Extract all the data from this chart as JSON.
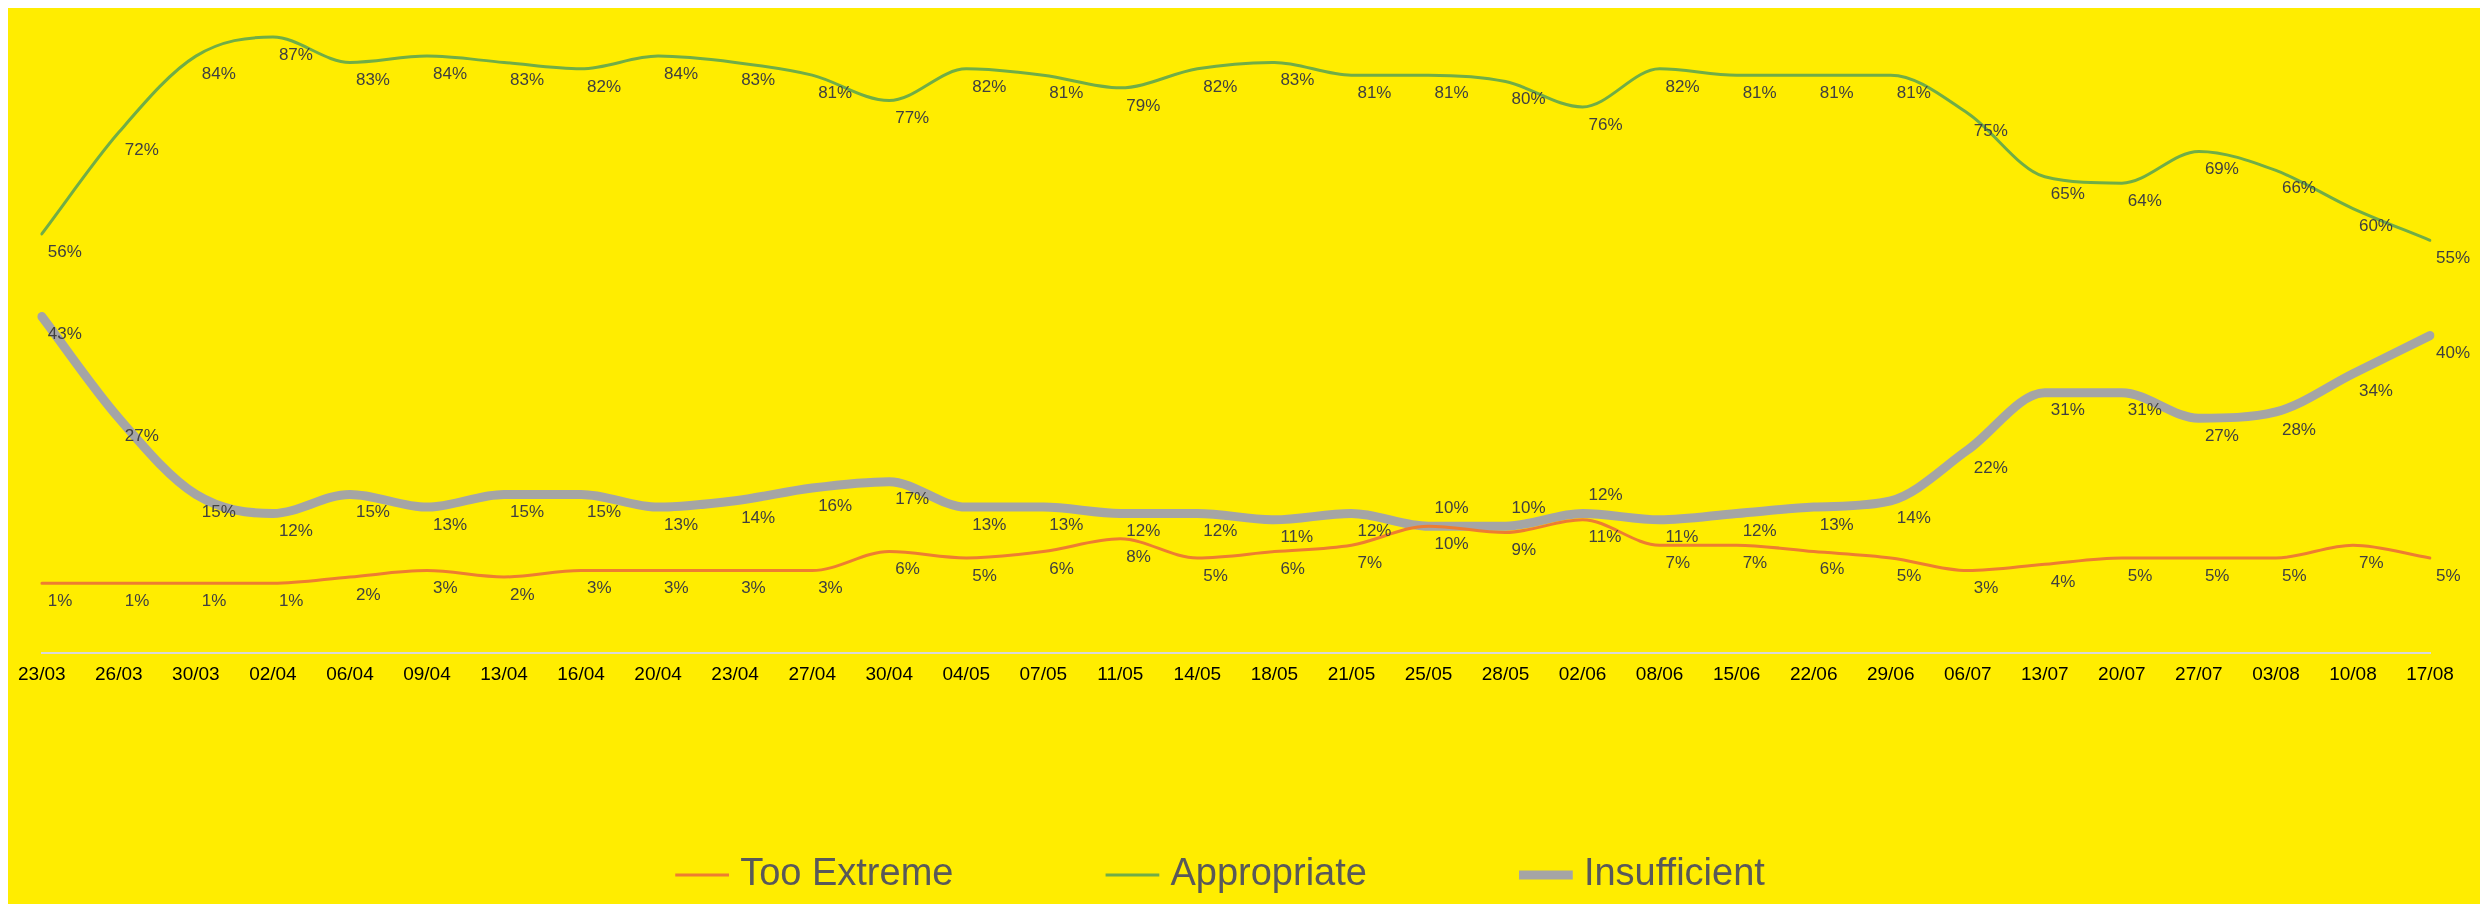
{
  "chart_data": {
    "type": "line",
    "categories": [
      "23/03",
      "26/03",
      "30/03",
      "02/04",
      "06/04",
      "09/04",
      "13/04",
      "16/04",
      "20/04",
      "23/04",
      "27/04",
      "30/04",
      "04/05",
      "07/05",
      "11/05",
      "14/05",
      "18/05",
      "21/05",
      "25/05",
      "28/05",
      "02/06",
      "08/06",
      "15/06",
      "22/06",
      "29/06",
      "06/07",
      "13/07",
      "20/07",
      "27/07",
      "03/08",
      "10/08",
      "17/08"
    ],
    "series": [
      {
        "name": "Too Extreme",
        "color": "#ed7d31",
        "values": [
          1,
          1,
          1,
          1,
          2,
          3,
          2,
          3,
          3,
          3,
          3,
          6,
          5,
          6,
          8,
          5,
          6,
          7,
          10,
          9,
          11,
          7,
          7,
          6,
          5,
          3,
          4,
          5,
          5,
          5,
          7,
          5
        ],
        "value_labels": [
          "1%",
          "1%",
          "1%",
          "1%",
          "2%",
          "3%",
          "2%",
          "3%",
          "3%",
          "3%",
          "3%",
          "6%",
          "5%",
          "6%",
          "8%",
          "5%",
          "6%",
          "7%",
          "10%",
          "9%",
          "11%",
          "7%",
          "7%",
          "6%",
          "5%",
          "3%",
          "4%",
          "5%",
          "5%",
          "5%",
          "7%",
          "5%"
        ]
      },
      {
        "name": "Appropriate",
        "color": "#70ad47",
        "values": [
          56,
          72,
          84,
          87,
          83,
          84,
          83,
          82,
          84,
          83,
          81,
          77,
          82,
          81,
          79,
          82,
          83,
          81,
          81,
          80,
          76,
          82,
          81,
          81,
          81,
          75,
          65,
          64,
          69,
          66,
          60,
          55
        ],
        "value_labels": [
          "56%",
          "72%",
          "84%",
          "87%",
          "83%",
          "84%",
          "83%",
          "82%",
          "84%",
          "83%",
          "81%",
          "77%",
          "82%",
          "81%",
          "79%",
          "82%",
          "83%",
          "81%",
          "81%",
          "80%",
          "76%",
          "82%",
          "81%",
          "81%",
          "81%",
          "75%",
          "65%",
          "64%",
          "69%",
          "66%",
          "60%",
          "55%"
        ]
      },
      {
        "name": "Insufficient",
        "color": "#a5a5a5",
        "values": [
          43,
          27,
          15,
          12,
          15,
          13,
          15,
          15,
          13,
          14,
          16,
          17,
          13,
          13,
          12,
          12,
          11,
          12,
          10,
          10,
          12,
          11,
          12,
          13,
          14,
          22,
          31,
          31,
          27,
          28,
          34,
          40
        ],
        "value_labels": [
          "43%",
          "27%",
          "15%",
          "12%",
          "15%",
          "13%",
          "15%",
          "15%",
          "13%",
          "14%",
          "16%",
          "17%",
          "13%",
          "13%",
          "12%",
          "12%",
          "11%",
          "12%",
          "10%",
          "10%",
          "12%",
          "11%",
          "12%",
          "13%",
          "14%",
          "22%",
          "31%",
          "31%",
          "27%",
          "28%",
          "34%",
          "40%"
        ]
      }
    ],
    "legend": "bottom",
    "marker": "none",
    "line_style": "solid"
  }
}
